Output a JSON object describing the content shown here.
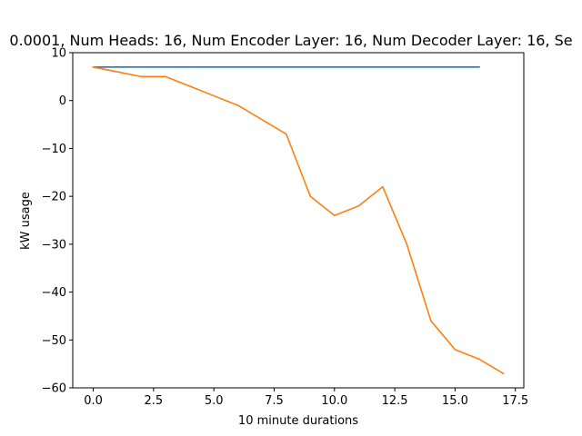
{
  "chart_data": {
    "type": "line",
    "title": "0.0001, Num Heads: 16, Num Encoder Layer: 16, Num Decoder Layer: 16, Se",
    "xlabel": "10 minute durations",
    "ylabel": "kW usage",
    "xlim": [
      -0.85,
      17.85
    ],
    "ylim": [
      -60,
      10
    ],
    "xticks": [
      0.0,
      2.5,
      5.0,
      7.5,
      10.0,
      12.5,
      15.0,
      17.5
    ],
    "xtick_labels": [
      "0.0",
      "2.5",
      "5.0",
      "7.5",
      "10.0",
      "12.5",
      "15.0",
      "17.5"
    ],
    "yticks": [
      10,
      0,
      -10,
      -20,
      -30,
      -40,
      -50,
      -60
    ],
    "ytick_labels": [
      "10",
      "0",
      "−10",
      "−20",
      "−30",
      "−40",
      "−50",
      "−60"
    ],
    "grid": false,
    "series": [
      {
        "color": "#1f77b4",
        "x": [
          0,
          16
        ],
        "y": [
          7,
          7
        ]
      },
      {
        "color": "#ff7f0e",
        "x": [
          0,
          1,
          2,
          3,
          4,
          5,
          6,
          7,
          8,
          9,
          10,
          11,
          12,
          13,
          14,
          15,
          16,
          17
        ],
        "y": [
          7,
          6,
          5,
          5,
          3,
          1,
          -1,
          -4,
          -7,
          -20,
          -24,
          -22,
          -18,
          -30,
          -46,
          -52,
          -54,
          -57
        ]
      }
    ]
  }
}
